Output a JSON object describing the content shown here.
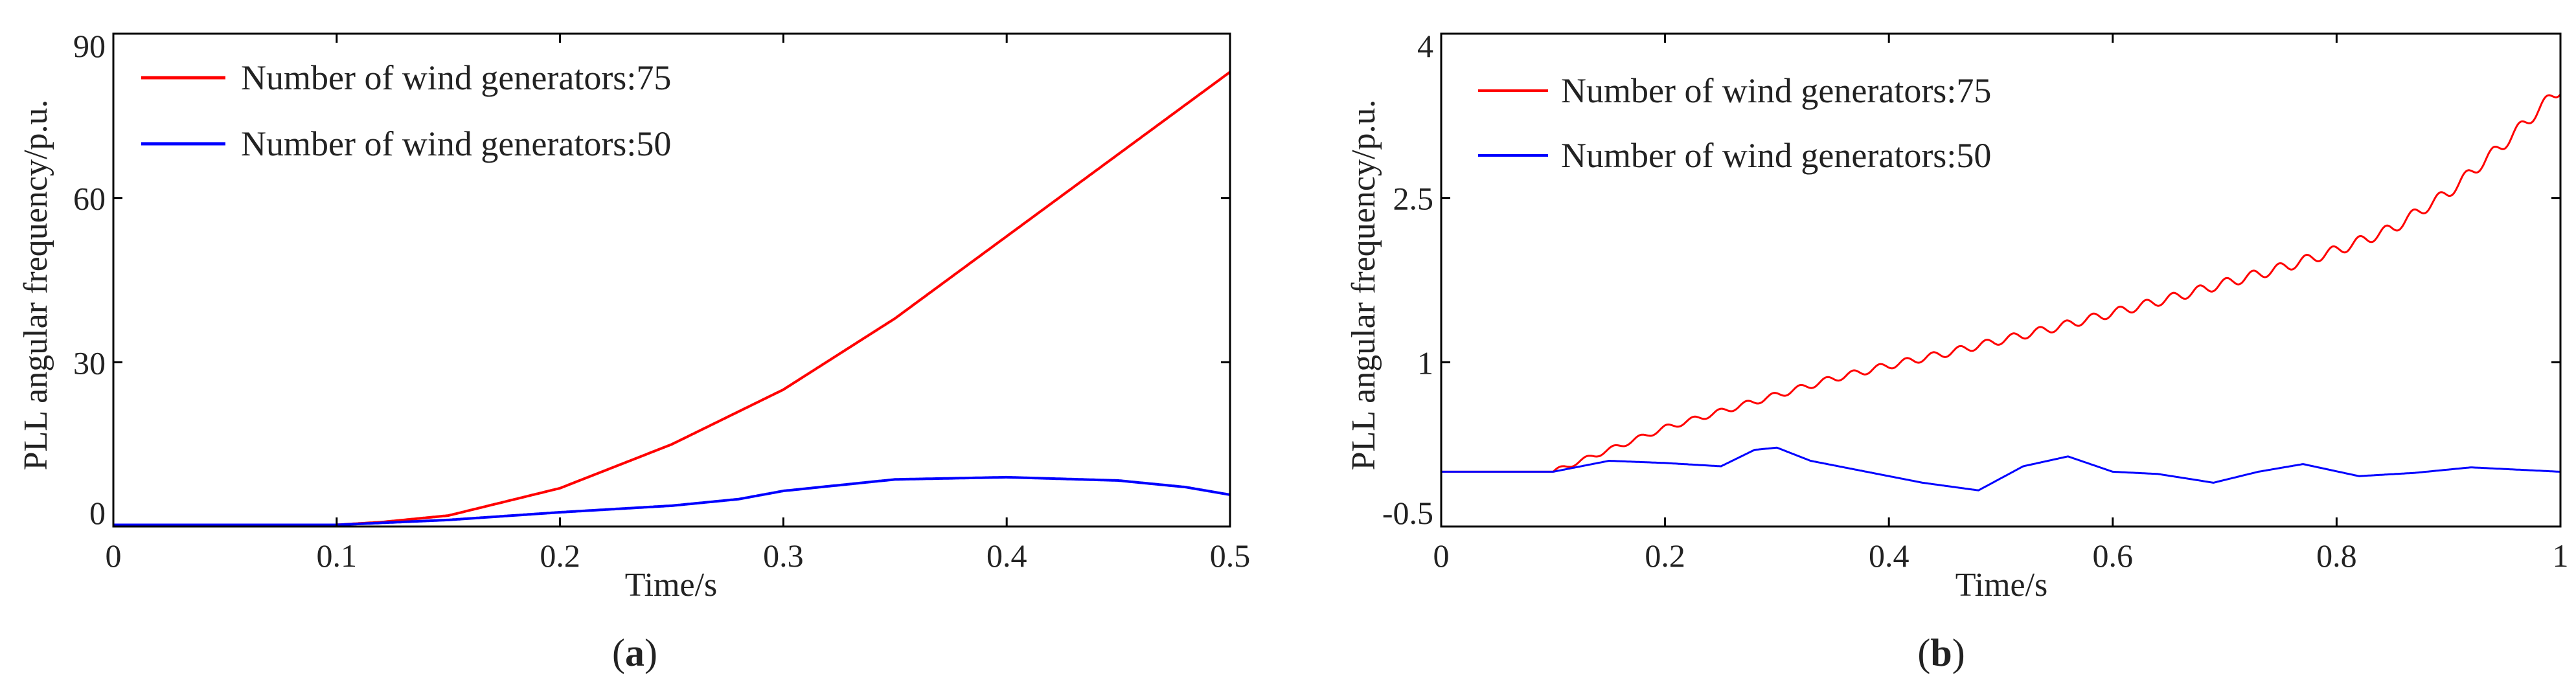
{
  "figure": {
    "panels": [
      {
        "label_open": "(",
        "label_letter": "a",
        "label_close": ")"
      },
      {
        "label_open": "(",
        "label_letter": "b",
        "label_close": ")"
      }
    ]
  },
  "chart_data": [
    {
      "type": "line",
      "title": "",
      "xlabel": "Time/s",
      "ylabel": "PLL angular frequency/p.u.",
      "xlim": [
        0,
        0.5
      ],
      "ylim": [
        0,
        90
      ],
      "xticks": [
        0,
        0.1,
        0.2,
        0.3,
        0.4,
        0.5
      ],
      "xtick_labels": [
        "0",
        "0.1",
        "0.2",
        "0.3",
        "0.4",
        "0.5"
      ],
      "yticks": [
        0,
        30,
        60,
        90
      ],
      "ytick_labels": [
        "0",
        "30",
        "60",
        "90"
      ],
      "grid": false,
      "legend_position": "top-left",
      "series": [
        {
          "name": "Number of wind generators:75",
          "color": "#ff0000",
          "x": [
            0,
            0.05,
            0.1,
            0.12,
            0.15,
            0.2,
            0.25,
            0.3,
            0.35,
            0.4,
            0.45,
            0.5
          ],
          "y": [
            0.3,
            0.3,
            0.3,
            0.8,
            2,
            7,
            15,
            25,
            38,
            53,
            68,
            83
          ]
        },
        {
          "name": "Number of wind generators:50",
          "color": "#0000ff",
          "x": [
            0,
            0.05,
            0.1,
            0.15,
            0.2,
            0.25,
            0.28,
            0.3,
            0.35,
            0.4,
            0.45,
            0.48,
            0.5
          ],
          "y": [
            0.3,
            0.3,
            0.3,
            1.2,
            2.6,
            3.8,
            5,
            6.5,
            8.6,
            9,
            8.4,
            7.2,
            5.8
          ]
        }
      ]
    },
    {
      "type": "line",
      "title": "",
      "xlabel": "Time/s",
      "ylabel": "PLL angular frequency/p.u.",
      "xlim": [
        0,
        1
      ],
      "ylim": [
        -0.5,
        4
      ],
      "xticks": [
        0,
        0.2,
        0.4,
        0.6,
        0.8,
        1
      ],
      "xtick_labels": [
        "0",
        "0.2",
        "0.4",
        "0.6",
        "0.8",
        "1"
      ],
      "yticks": [
        -0.5,
        1,
        2.5,
        4
      ],
      "ytick_labels": [
        "-0.5",
        "1",
        "2.5",
        "4"
      ],
      "grid": false,
      "legend_position": "top-left",
      "series": [
        {
          "name": "Number of wind generators:75",
          "color": "#ff0000",
          "oscillation": 0.035,
          "x": [
            0,
            0.1,
            0.15,
            0.2,
            0.25,
            0.3,
            0.35,
            0.4,
            0.45,
            0.5,
            0.55,
            0.6,
            0.65,
            0.7,
            0.75,
            0.8,
            0.85,
            0.9,
            0.95,
            1
          ],
          "y": [
            0,
            0,
            0.2,
            0.4,
            0.55,
            0.7,
            0.85,
            0.97,
            1.08,
            1.2,
            1.32,
            1.45,
            1.58,
            1.72,
            1.86,
            2.02,
            2.22,
            2.55,
            3.0,
            3.5
          ]
        },
        {
          "name": "Number of wind generators:50",
          "color": "#0000ff",
          "x": [
            0,
            0.1,
            0.15,
            0.2,
            0.25,
            0.28,
            0.3,
            0.33,
            0.38,
            0.43,
            0.48,
            0.52,
            0.56,
            0.6,
            0.64,
            0.69,
            0.73,
            0.77,
            0.82,
            0.87,
            0.92,
            0.96,
            1
          ],
          "y": [
            0,
            0,
            0.1,
            0.08,
            0.05,
            0.2,
            0.22,
            0.1,
            0.0,
            -0.1,
            -0.17,
            0.05,
            0.14,
            0.0,
            -0.02,
            -0.1,
            0.0,
            0.07,
            -0.04,
            -0.01,
            0.04,
            0.02,
            0.0
          ]
        }
      ]
    }
  ]
}
